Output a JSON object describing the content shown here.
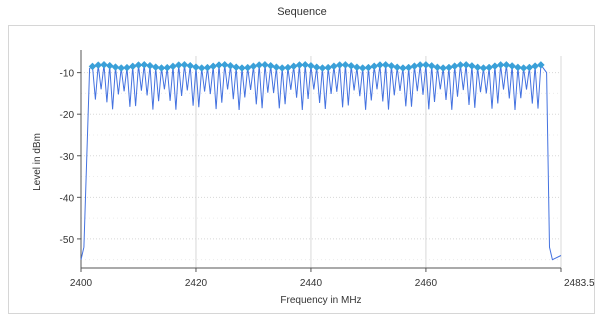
{
  "title": "Sequence",
  "colors": {
    "series": "#4472e0",
    "markers": "#3aa0d8",
    "grid": "#d8d8d8",
    "axis": "#555555"
  },
  "chart_data": {
    "type": "line",
    "title": "Sequence",
    "xlabel": "Frequency in MHz",
    "ylabel": "Level in dBm",
    "xlim": [
      2400,
      2483.5
    ],
    "ylim": [
      -57,
      -6
    ],
    "x_ticks": [
      2400,
      2420,
      2440,
      2460,
      2483.5
    ],
    "x_tick_labels": [
      "2400",
      "2420",
      "2440",
      "2460",
      "2483.5"
    ],
    "y_ticks": [
      -10,
      -20,
      -30,
      -40,
      -50
    ],
    "y_tick_labels": [
      "-10",
      "-20",
      "-30",
      "-40",
      "-50"
    ],
    "grid": true,
    "series": [
      {
        "hop_start_mhz": 2402,
        "hop_end_mhz": 2480,
        "hop_spacing_mhz": 1,
        "peak_level_dbm": -8.5,
        "trough_level_dbm_range": [
          -19,
          -14
        ],
        "noise_floor_dbm": -55,
        "edge_points": [
          [
            2400,
            -55
          ],
          [
            2400.5,
            -52
          ],
          [
            2401.5,
            -9
          ],
          [
            2481,
            -10
          ],
          [
            2481.5,
            -52
          ],
          [
            2482,
            -55
          ],
          [
            2483.5,
            -54
          ]
        ]
      }
    ]
  }
}
